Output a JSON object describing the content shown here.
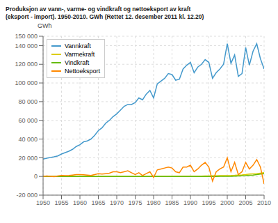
{
  "chart_data": {
    "type": "line",
    "title": "Produksjon av vann-, varme- og vindkraft og nettoeksport av kraft",
    "subtitle": "(eksport - import). 1950-2010. GWh (Rettet 12. desember 2011 kl. 12.20)",
    "ylabel": "GWh",
    "x": [
      1950,
      1951,
      1952,
      1953,
      1954,
      1955,
      1956,
      1957,
      1958,
      1959,
      1960,
      1961,
      1962,
      1963,
      1964,
      1965,
      1966,
      1967,
      1968,
      1969,
      1970,
      1971,
      1972,
      1973,
      1974,
      1975,
      1976,
      1977,
      1978,
      1979,
      1980,
      1981,
      1982,
      1983,
      1984,
      1985,
      1986,
      1987,
      1988,
      1989,
      1990,
      1991,
      1992,
      1993,
      1994,
      1995,
      1996,
      1997,
      1998,
      1999,
      2000,
      2001,
      2002,
      2003,
      2004,
      2005,
      2006,
      2007,
      2008,
      2009,
      2010
    ],
    "series": [
      {
        "name": "Vannkraft",
        "color": "#4499cc",
        "values": [
          18500,
          19500,
          20200,
          21000,
          22000,
          24000,
          25500,
          27000,
          29000,
          32000,
          34000,
          37000,
          38000,
          40000,
          44000,
          49000,
          52000,
          57000,
          60000,
          64000,
          67000,
          71000,
          75000,
          77000,
          77000,
          79000,
          84000,
          82000,
          88000,
          92000,
          84000,
          99000,
          102000,
          105000,
          110000,
          109000,
          103000,
          104000,
          115000,
          119000,
          122000,
          111000,
          117000,
          120000,
          125000,
          122000,
          105000,
          111000,
          115000,
          120000,
          142000,
          121000,
          130000,
          107000,
          110000,
          138000,
          119000,
          134000,
          142000,
          126000,
          115000
        ]
      },
      {
        "name": "Varmekraft",
        "color": "#ddcc00",
        "values": [
          100,
          100,
          100,
          100,
          100,
          100,
          100,
          100,
          100,
          100,
          100,
          100,
          100,
          100,
          100,
          100,
          100,
          100,
          100,
          100,
          100,
          100,
          100,
          100,
          100,
          100,
          100,
          100,
          100,
          100,
          200,
          200,
          200,
          200,
          200,
          200,
          300,
          300,
          300,
          300,
          300,
          300,
          400,
          400,
          500,
          500,
          600,
          700,
          800,
          800,
          900,
          1000,
          1200,
          1500,
          1700,
          2000,
          2500,
          2800,
          3000,
          3500,
          4000
        ]
      },
      {
        "name": "Vindkraft",
        "color": "#66bb00",
        "values": [
          0,
          0,
          0,
          0,
          0,
          0,
          0,
          0,
          0,
          0,
          0,
          0,
          0,
          0,
          0,
          0,
          0,
          0,
          0,
          0,
          0,
          0,
          0,
          0,
          0,
          0,
          0,
          0,
          0,
          0,
          0,
          0,
          0,
          0,
          0,
          0,
          0,
          0,
          0,
          0,
          0,
          0,
          0,
          0,
          0,
          10,
          20,
          30,
          50,
          80,
          120,
          200,
          350,
          500,
          700,
          900,
          1200,
          1500,
          2000,
          2500,
          3000
        ]
      },
      {
        "name": "Nettoeksport",
        "color": "#ff8800",
        "values": [
          0,
          500,
          200,
          -300,
          500,
          1000,
          800,
          1000,
          1500,
          2000,
          2000,
          1800,
          1500,
          1000,
          2000,
          3000,
          2500,
          3000,
          3500,
          5000,
          5000,
          4000,
          5000,
          6000,
          4000,
          2000,
          4000,
          1000,
          3000,
          5000,
          -1000,
          7000,
          8000,
          9000,
          10000,
          9000,
          5000,
          4000,
          10000,
          10000,
          12000,
          5000,
          8000,
          12000,
          15000,
          10000,
          -5000,
          5000,
          8000,
          10000,
          20000,
          5000,
          15000,
          2000,
          5000,
          15000,
          8000,
          12000,
          18000,
          10000,
          -8000
        ]
      }
    ],
    "xlim": [
      1950,
      2010
    ],
    "xticks": [
      1950,
      1955,
      1960,
      1965,
      1970,
      1975,
      1980,
      1985,
      1990,
      1995,
      2000,
      2005,
      2010
    ],
    "ylim": [
      -20000,
      150000
    ],
    "yticks": [
      {
        "value": -20000,
        "label": "-20 000"
      },
      0,
      {
        "value": 20000,
        "label": "20 000"
      },
      {
        "value": 40000,
        "label": "40 000"
      },
      {
        "value": 60000,
        "label": "60 000"
      },
      {
        "value": 80000,
        "label": "80 000"
      },
      {
        "value": 100000,
        "label": "100 000"
      },
      {
        "value": 120000,
        "label": "120 000"
      },
      {
        "value": 140000,
        "label": "140 000"
      },
      {
        "value": 150000,
        "label": "150 000"
      }
    ],
    "grid": true,
    "legend": "upper left"
  }
}
